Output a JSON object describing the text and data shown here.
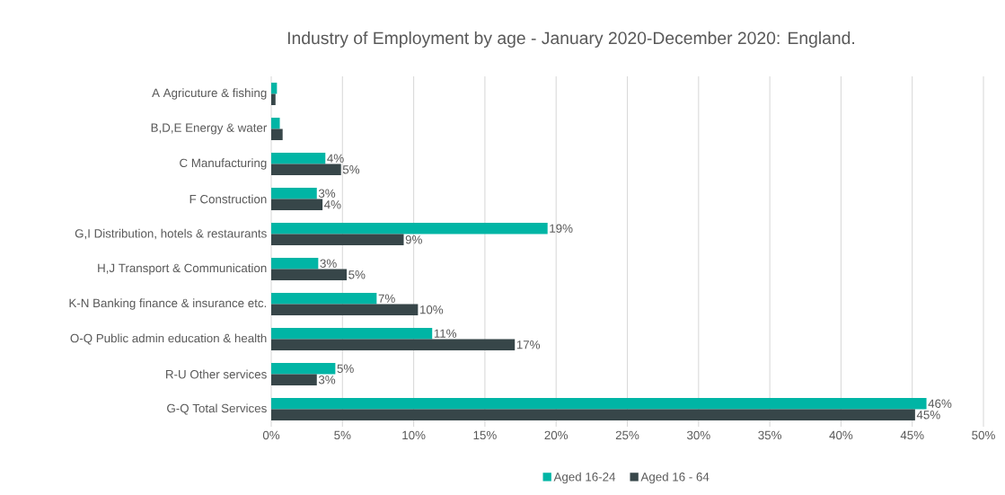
{
  "chart_data": {
    "type": "bar",
    "orientation": "horizontal",
    "title": "Industry of Employment by age - January 2020-December 2020: England.",
    "categories": [
      "A Agricuture & fishing",
      "B,D,E Energy & water",
      "C Manufacturing",
      "F Construction",
      "G,I Distribution, hotels & restaurants",
      "H,J Transport & Communication",
      "K-N Banking finance & insurance etc.",
      "O-Q Public admin education & health",
      "R-U Other services",
      "G-Q Total Services"
    ],
    "series": [
      {
        "name": "Aged 16-24",
        "color": "#00b5a5",
        "values": [
          0.4,
          0.6,
          3.8,
          3.2,
          19.4,
          3.3,
          7.4,
          11.3,
          4.5,
          46.0
        ],
        "value_labels": [
          null,
          null,
          "4%",
          "3%",
          "19%",
          "3%",
          "7%",
          "11%",
          "5%",
          "46%"
        ]
      },
      {
        "name": "Aged 16 - 64",
        "color": "#374649",
        "values": [
          0.3,
          0.8,
          4.9,
          3.6,
          9.3,
          5.3,
          10.3,
          17.1,
          3.2,
          45.2
        ],
        "value_labels": [
          null,
          null,
          "5%",
          "4%",
          "9%",
          "5%",
          "10%",
          "17%",
          "3%",
          "45%"
        ]
      }
    ],
    "xlim": [
      0,
      50
    ],
    "xticks": [
      {
        "value": 0,
        "label": "0%"
      },
      {
        "value": 5,
        "label": "5%"
      },
      {
        "value": 10,
        "label": "10%"
      },
      {
        "value": 15,
        "label": "15%"
      },
      {
        "value": 20,
        "label": "20%"
      },
      {
        "value": 25,
        "label": "25%"
      },
      {
        "value": 30,
        "label": "30%"
      },
      {
        "value": 35,
        "label": "35%"
      },
      {
        "value": 40,
        "label": "40%"
      },
      {
        "value": 45,
        "label": "45%"
      },
      {
        "value": 50,
        "label": "50%"
      }
    ],
    "grid": "x",
    "legend": "bottom"
  }
}
